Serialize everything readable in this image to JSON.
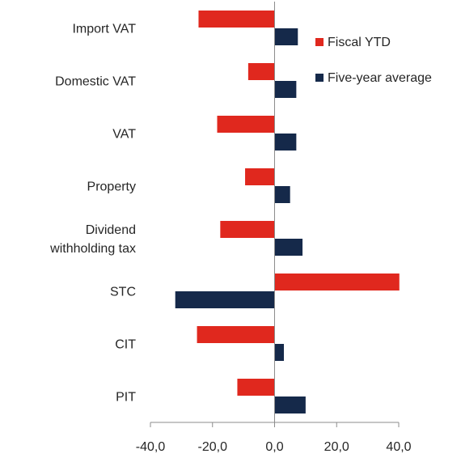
{
  "chart_data": {
    "type": "bar",
    "orientation": "horizontal",
    "categories": [
      "Import VAT",
      "Domestic VAT",
      "VAT",
      "Property",
      "Dividend withholding tax",
      "STC",
      "CIT",
      "PIT"
    ],
    "category_lines": [
      [
        "Import VAT"
      ],
      [
        "Domestic VAT"
      ],
      [
        "VAT"
      ],
      [
        "Property"
      ],
      [
        "Dividend",
        "withholding tax"
      ],
      [
        "STC"
      ],
      [
        "CIT"
      ],
      [
        "PIT"
      ]
    ],
    "series": [
      {
        "name": "Fiscal YTD",
        "color": "#e0281e",
        "values": [
          -24.5,
          -8.5,
          -18.5,
          -9.5,
          -17.5,
          40.2,
          -25.0,
          -12.0
        ]
      },
      {
        "name": "Five-year average",
        "color": "#15294a",
        "values": [
          7.5,
          7.0,
          7.0,
          5.0,
          9.0,
          -32.0,
          3.0,
          10.0
        ]
      }
    ],
    "x_ticks": [
      "-40,0",
      "-20,0",
      "0,0",
      "20,0",
      "40,0"
    ],
    "x_tick_values": [
      -40,
      -20,
      0,
      20,
      40
    ],
    "xlim": [
      -40,
      40
    ],
    "legend_position": "top-right",
    "grid": false
  }
}
